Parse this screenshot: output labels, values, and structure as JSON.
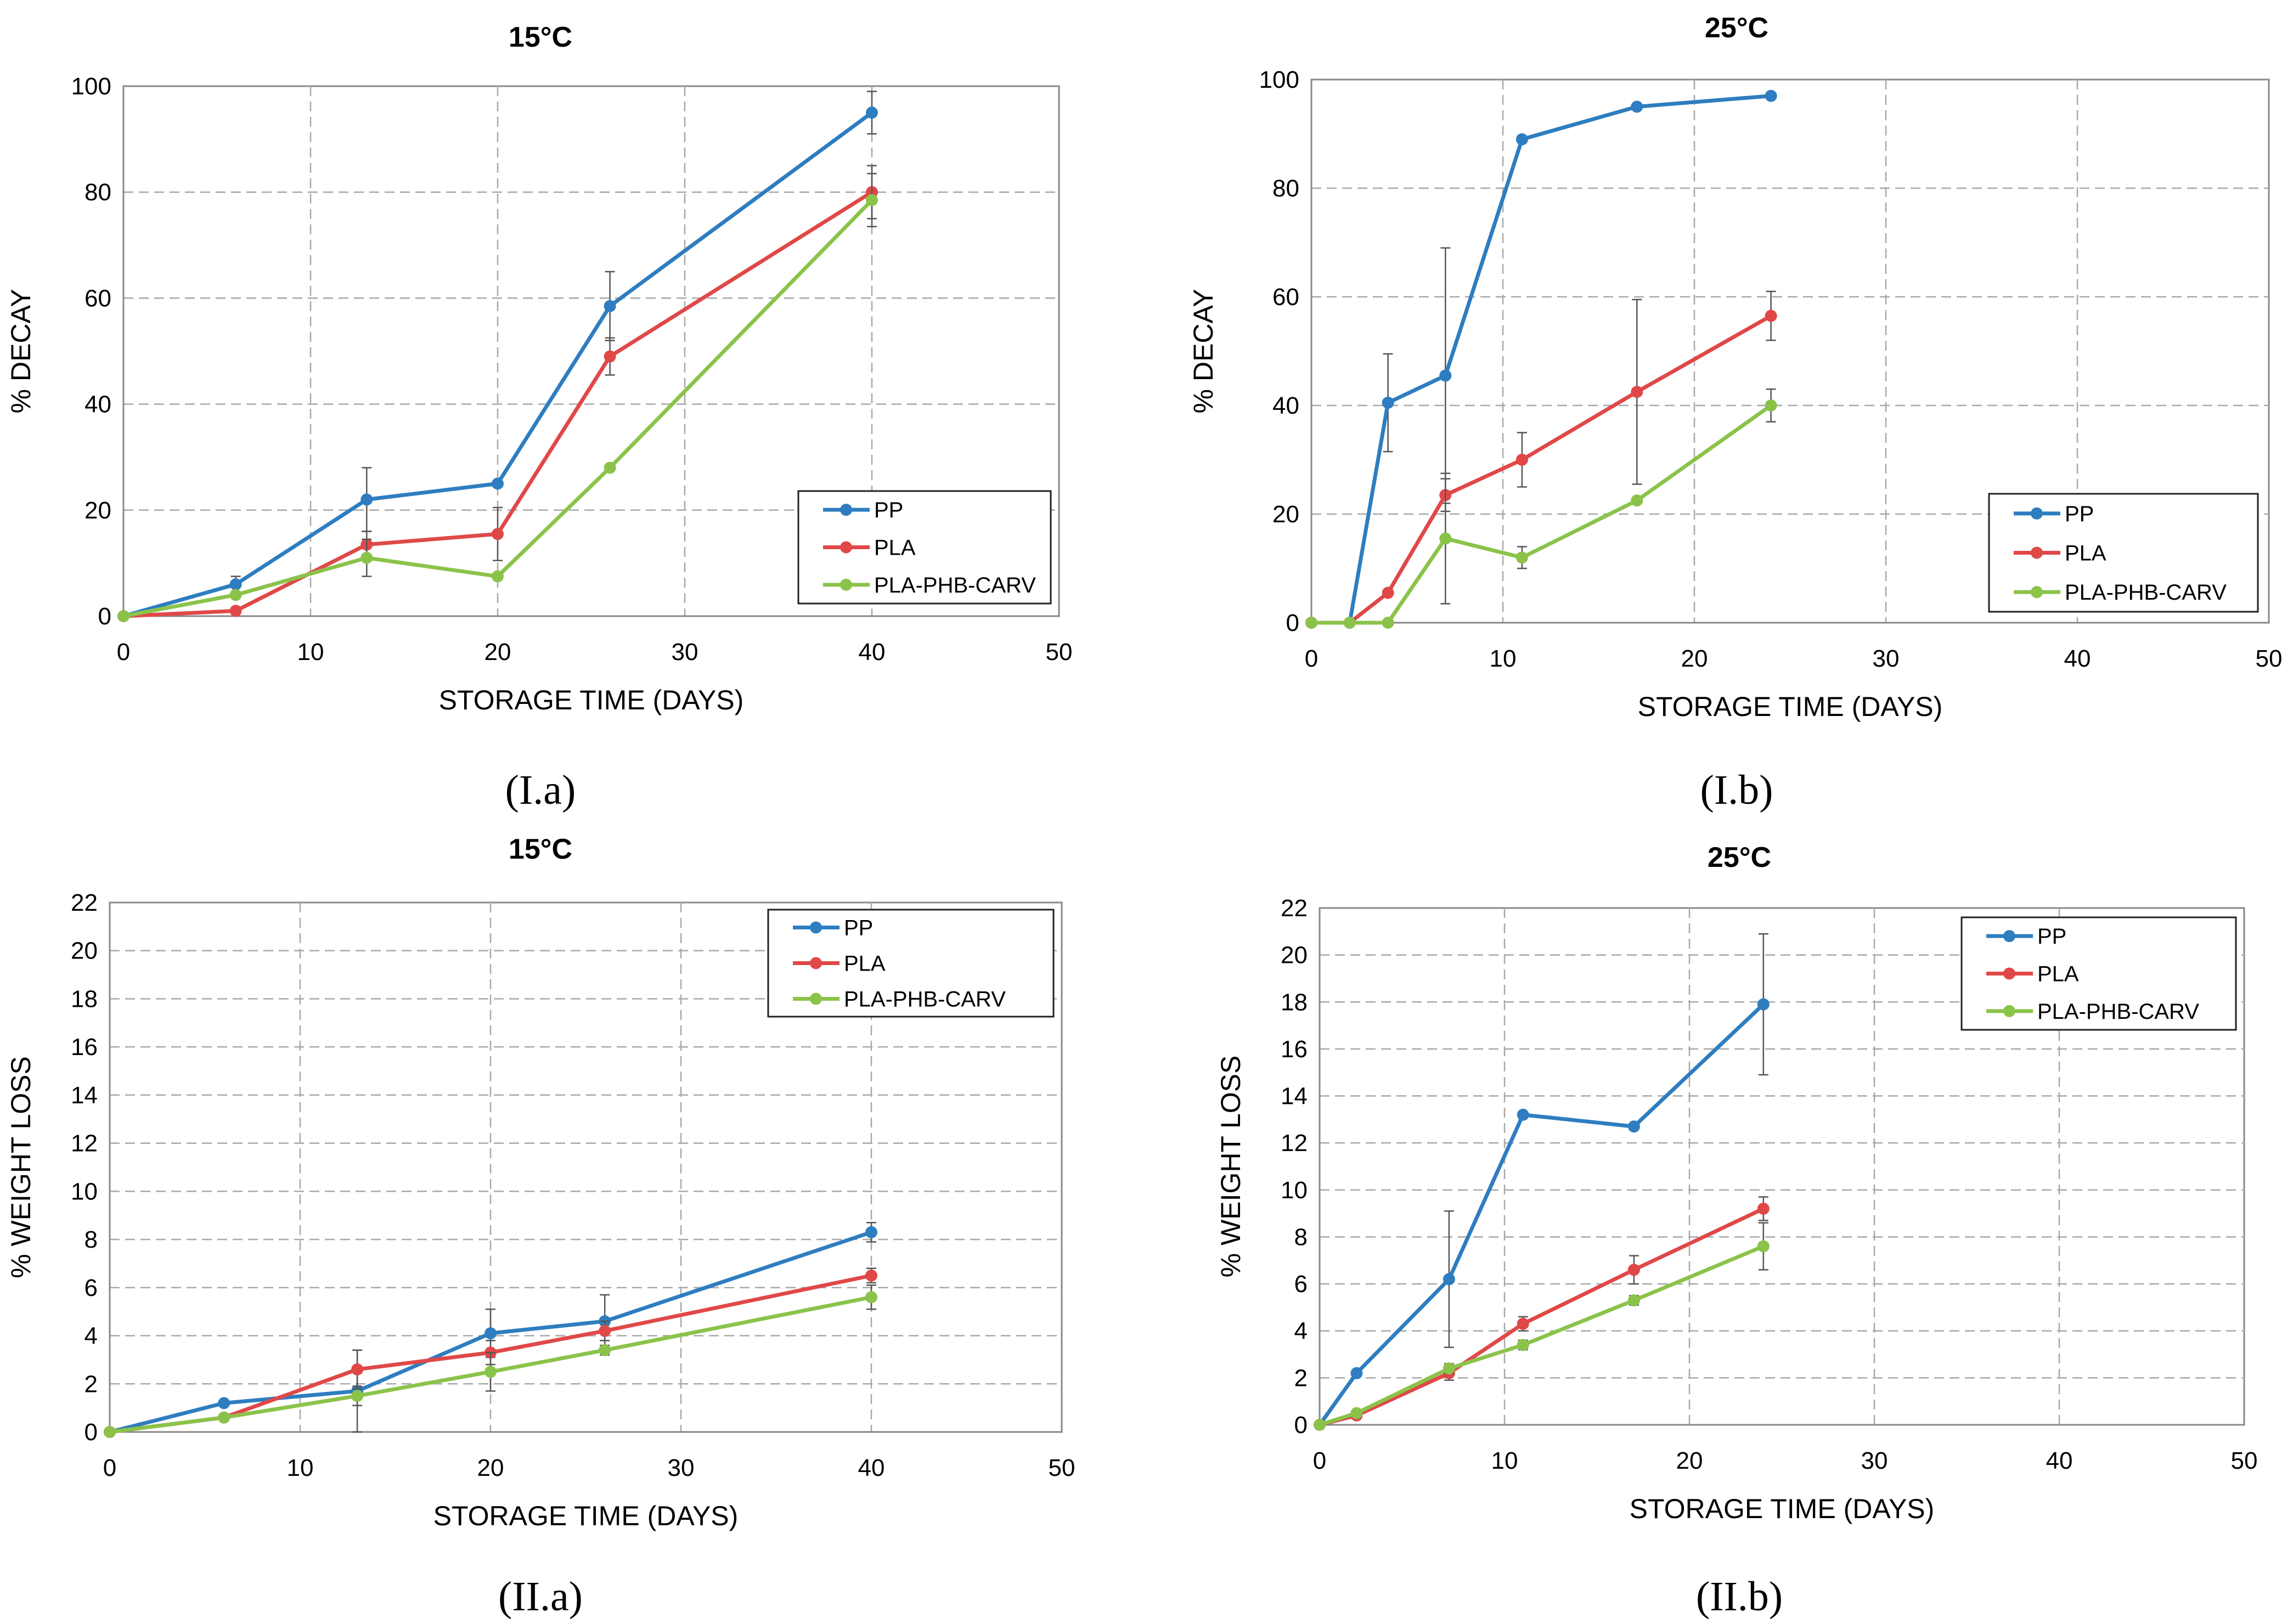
{
  "chart_data": [
    {
      "id": "Ia",
      "type": "line",
      "panel_label": "(I.a)",
      "title": "15°C",
      "xlabel": "STORAGE TIME (DAYS)",
      "ylabel": "% DECAY",
      "xlim": [
        0,
        50
      ],
      "ylim": [
        0,
        100
      ],
      "xticks": [
        0,
        10,
        20,
        30,
        40,
        50
      ],
      "yticks": [
        0,
        20,
        40,
        60,
        80,
        100
      ],
      "grid": true,
      "legend": "lower-right",
      "series": [
        {
          "name": "PP",
          "color": "#2E7DC0",
          "x": [
            0,
            6,
            13,
            20,
            26,
            40
          ],
          "y": [
            0,
            6,
            22,
            25,
            58.5,
            95
          ],
          "err": [
            0,
            1.5,
            6,
            0,
            6.5,
            4
          ]
        },
        {
          "name": "PLA",
          "color": "#E04848",
          "x": [
            0,
            6,
            13,
            20,
            26,
            40
          ],
          "y": [
            0,
            1,
            13.5,
            15.5,
            49,
            80
          ],
          "err": [
            0,
            0,
            2.5,
            5,
            3.5,
            5
          ]
        },
        {
          "name": "PLA-PHB-CARV",
          "color": "#8BC34A",
          "x": [
            0,
            6,
            13,
            20,
            26,
            40
          ],
          "y": [
            0,
            4,
            11,
            7.5,
            28,
            78.5
          ],
          "err": [
            0,
            0,
            3.5,
            0,
            0,
            5
          ]
        }
      ]
    },
    {
      "id": "Ib",
      "type": "line",
      "panel_label": "(I.b)",
      "title": "25°C",
      "xlabel": "STORAGE TIME (DAYS)",
      "ylabel": "% DECAY",
      "xlim": [
        0,
        50
      ],
      "ylim": [
        0,
        100
      ],
      "xticks": [
        0,
        10,
        20,
        30,
        40,
        50
      ],
      "yticks": [
        0,
        20,
        40,
        60,
        80,
        100
      ],
      "grid": true,
      "legend": "lower-right",
      "series": [
        {
          "name": "PP",
          "color": "#2E7DC0",
          "x": [
            0,
            2,
            4,
            7,
            11,
            17,
            24
          ],
          "y": [
            0,
            0,
            40.5,
            45.5,
            89,
            95,
            97
          ],
          "err": [
            0,
            0,
            9,
            23.5,
            0,
            0,
            0
          ]
        },
        {
          "name": "PLA",
          "color": "#E04848",
          "x": [
            0,
            2,
            4,
            7,
            11,
            17,
            24
          ],
          "y": [
            0,
            0,
            5.5,
            23.5,
            30,
            42.5,
            56.5
          ],
          "err": [
            0,
            0,
            0,
            3,
            5,
            17,
            4.5
          ]
        },
        {
          "name": "PLA-PHB-CARV",
          "color": "#8BC34A",
          "x": [
            0,
            2,
            4,
            7,
            11,
            17,
            24
          ],
          "y": [
            0,
            0,
            0,
            15.5,
            12,
            22.5,
            40
          ],
          "err": [
            0,
            0,
            0,
            12,
            2,
            0,
            3
          ]
        }
      ]
    },
    {
      "id": "IIa",
      "type": "line",
      "panel_label": "(II.a)",
      "title": "15°C",
      "xlabel": "STORAGE TIME (DAYS)",
      "ylabel": "% WEIGHT LOSS",
      "xlim": [
        0,
        50
      ],
      "ylim": [
        0,
        22
      ],
      "xticks": [
        0,
        10,
        20,
        30,
        40,
        50
      ],
      "yticks": [
        0,
        2,
        4,
        6,
        8,
        10,
        12,
        14,
        16,
        18,
        20,
        22
      ],
      "grid": true,
      "legend": "top-right",
      "series": [
        {
          "name": "PP",
          "color": "#2E7DC0",
          "x": [
            0,
            6,
            13,
            20,
            26,
            40
          ],
          "y": [
            0,
            1.2,
            1.7,
            4.1,
            4.6,
            8.3
          ],
          "err": [
            0,
            0,
            1.7,
            1,
            1.1,
            0.4
          ]
        },
        {
          "name": "PLA",
          "color": "#E04848",
          "x": [
            0,
            6,
            13,
            20,
            26,
            40
          ],
          "y": [
            0,
            0.6,
            2.6,
            3.3,
            4.2,
            6.5
          ],
          "err": [
            0,
            0,
            0.8,
            0.5,
            0.4,
            0.3
          ]
        },
        {
          "name": "PLA-PHB-CARV",
          "color": "#8BC34A",
          "x": [
            0,
            6,
            13,
            20,
            26,
            40
          ],
          "y": [
            0,
            0.6,
            1.5,
            2.5,
            3.4,
            5.6
          ],
          "err": [
            0,
            0,
            0.4,
            0.8,
            0.2,
            0.5
          ]
        }
      ]
    },
    {
      "id": "IIb",
      "type": "line",
      "panel_label": "(II.b)",
      "title": "25°C",
      "xlabel": "STORAGE TIME (DAYS)",
      "ylabel": "% WEIGHT LOSS",
      "xlim": [
        0,
        50
      ],
      "ylim": [
        0,
        22
      ],
      "xticks": [
        0,
        10,
        20,
        30,
        40,
        50
      ],
      "yticks": [
        0,
        2,
        4,
        6,
        8,
        10,
        12,
        14,
        16,
        18,
        20,
        22
      ],
      "grid": true,
      "legend": "top-right",
      "series": [
        {
          "name": "PP",
          "color": "#2E7DC0",
          "x": [
            0,
            2,
            7,
            11,
            17,
            24
          ],
          "y": [
            0,
            2.2,
            6.2,
            13.2,
            12.7,
            17.9
          ],
          "err": [
            0,
            0,
            2.9,
            0,
            0,
            3
          ]
        },
        {
          "name": "PLA",
          "color": "#E04848",
          "x": [
            0,
            2,
            7,
            11,
            17,
            24
          ],
          "y": [
            0,
            0.4,
            2.2,
            4.3,
            6.6,
            9.2
          ],
          "err": [
            0,
            0,
            0.3,
            0.3,
            0.6,
            0.5
          ]
        },
        {
          "name": "PLA-PHB-CARV",
          "color": "#8BC34A",
          "x": [
            0,
            2,
            7,
            11,
            17,
            24
          ],
          "y": [
            0,
            0.5,
            2.4,
            3.4,
            5.3,
            7.6
          ],
          "err": [
            0,
            0,
            0.2,
            0.2,
            0.2,
            1
          ]
        }
      ]
    }
  ]
}
